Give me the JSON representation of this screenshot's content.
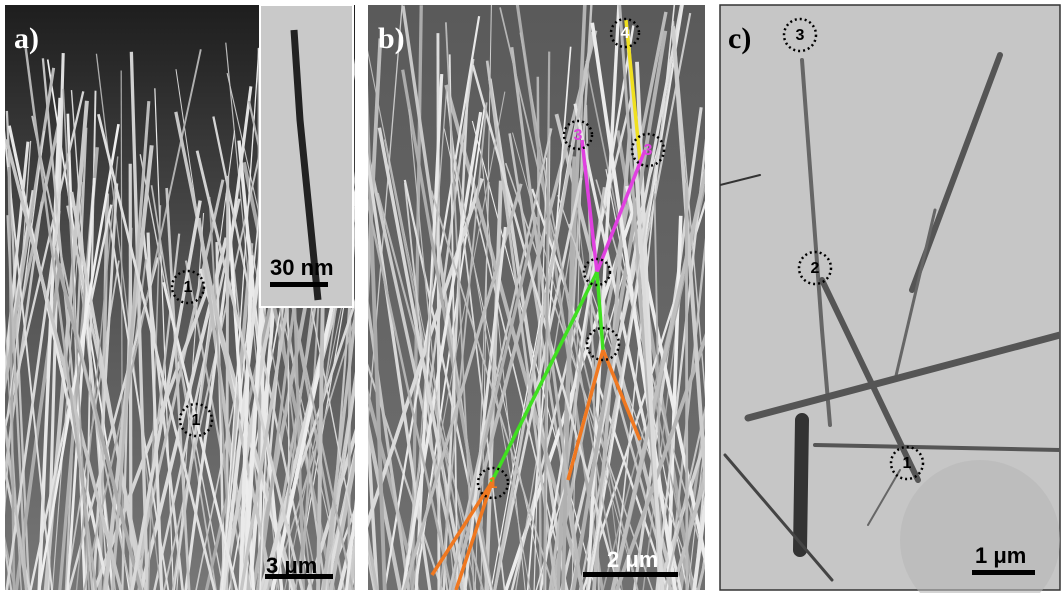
{
  "panels": [
    {
      "label": "a)",
      "scale_bar": "3 μm",
      "inset_scale_bar": "30 nm",
      "markers": [
        "1",
        "1"
      ]
    },
    {
      "label": "b)",
      "scale_bar": "2 μm",
      "markers": [
        "4",
        "3",
        "3",
        "1"
      ]
    },
    {
      "label": "c)",
      "scale_bar": "1 μm",
      "markers": [
        "3",
        "2",
        "1"
      ]
    }
  ]
}
